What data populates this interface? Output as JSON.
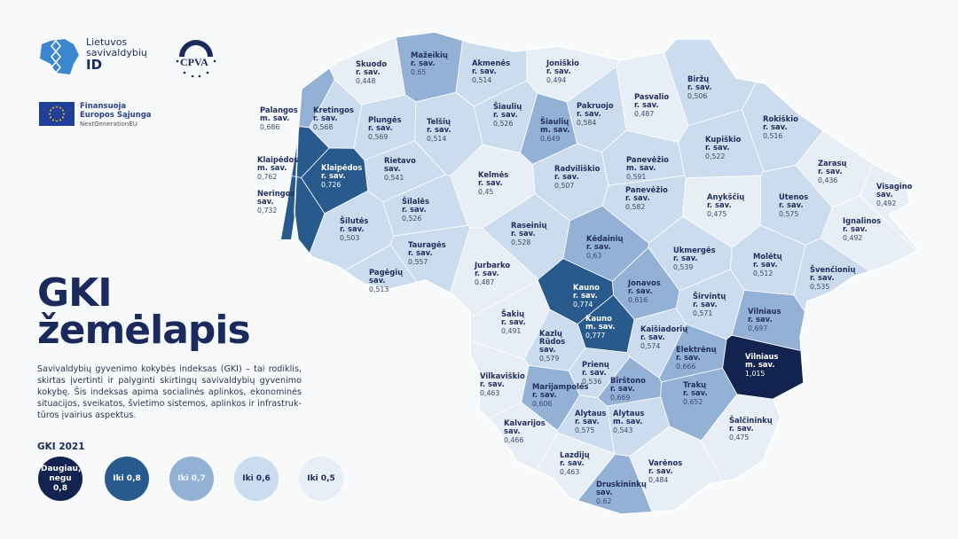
{
  "logos": {
    "lsid": {
      "line1": "Lietuvos",
      "line2": "savivaldybių",
      "line3": "ID"
    },
    "cpva": "CPVA",
    "eu": {
      "line1": "Finansuoja",
      "line2": "Europos Sąjunga",
      "line3": "NextGenerationEU"
    }
  },
  "title": {
    "line1": "GKI",
    "line2": "žemėlapis"
  },
  "description": "Savivaldybių gyvenimo kokybės indeksas (GKI) – tai rodiklis, skirtas įvertinti ir palyginti skirtingų savivaldybių gyvenimo kokybę. Šis indeksas apima socialinės aplinkos, ekonominės situacijos, sveikatos, švietimo sistemos, aplinkos ir infrastruk-tūros įvairius aspektus.",
  "legend": {
    "title": "GKI 2021",
    "items": [
      {
        "label": "Daugiau, negu 0,8",
        "color": "#13234f"
      },
      {
        "label": "Iki 0,8",
        "color": "#285a8e"
      },
      {
        "label": "Iki 0,7",
        "color": "#93b1d5"
      },
      {
        "label": "Iki 0,6",
        "color": "#cbdcee"
      },
      {
        "label": "Iki 0,5",
        "color": "#e8eef5"
      }
    ]
  },
  "municipalities": [
    {
      "name": "Skuodo",
      "type": "r. sav.",
      "value": "0,448"
    },
    {
      "name": "Mažeikių",
      "type": "r. sav.",
      "value": "0,65"
    },
    {
      "name": "Akmenės",
      "type": "r. sav.",
      "value": "0,514"
    },
    {
      "name": "Joniškio",
      "type": "r. sav.",
      "value": "0,494"
    },
    {
      "name": "Biržų",
      "type": "r. sav.",
      "value": "0,506"
    },
    {
      "name": "Pasvalio",
      "type": "r. sav.",
      "value": "0,487"
    },
    {
      "name": "Pakruojo",
      "type": "r. sav.",
      "value": "0,584"
    },
    {
      "name": "Šiaulių",
      "type": "r. sav.",
      "value": "0,526"
    },
    {
      "name": "Šiaulių",
      "type": "m. sav.",
      "value": "0,649"
    },
    {
      "name": "Kretingos",
      "type": "r. sav.",
      "value": "0,568"
    },
    {
      "name": "Plungės",
      "type": "r. sav.",
      "value": "0,569"
    },
    {
      "name": "Telšių",
      "type": "r. sav.",
      "value": "0,514"
    },
    {
      "name": "Rokiškio",
      "type": "r. sav.",
      "value": "0,516"
    },
    {
      "name": "Kupiškio",
      "type": "r. sav.",
      "value": "0,522"
    },
    {
      "name": "Klaipėdos",
      "type": "r. sav.",
      "value": "0,726"
    },
    {
      "name": "Rietavo",
      "type": "sav.",
      "value": "0,541"
    },
    {
      "name": "Kelmės",
      "type": "r. sav.",
      "value": "0,45"
    },
    {
      "name": "Radviliškio",
      "type": "r. sav.",
      "value": "0,507"
    },
    {
      "name": "Panevėžio",
      "type": "m. sav.",
      "value": "0,591"
    },
    {
      "name": "Panevėžio",
      "type": "r. sav.",
      "value": "0,582"
    },
    {
      "name": "Zarasų",
      "type": "r. sav.",
      "value": "0,436"
    },
    {
      "name": "Visagino",
      "type": "sav.",
      "value": "0,492"
    },
    {
      "name": "Anykščių",
      "type": "r. sav.",
      "value": "0,475"
    },
    {
      "name": "Utenos",
      "type": "r. sav.",
      "value": "0,575"
    },
    {
      "name": "Ignalinos",
      "type": "r. sav.",
      "value": "0,492"
    },
    {
      "name": "Šilalės",
      "type": "r. sav.",
      "value": "0,526"
    },
    {
      "name": "Šilutės",
      "type": "r. sav.",
      "value": "0,503"
    },
    {
      "name": "Raseinių",
      "type": "r. sav.",
      "value": "0,528"
    },
    {
      "name": "Kėdainių",
      "type": "r. sav.",
      "value": "0,63"
    },
    {
      "name": "Tauragės",
      "type": "r. sav.",
      "value": "0,557"
    },
    {
      "name": "Ukmergės",
      "type": "r. sav.",
      "value": "0,539"
    },
    {
      "name": "Molėtų",
      "type": "r. sav.",
      "value": "0,512"
    },
    {
      "name": "Švenčionių",
      "type": "r. sav.",
      "value": "0,535"
    },
    {
      "name": "Pagėgių",
      "type": "sav.",
      "value": "0,513"
    },
    {
      "name": "Jurbarko",
      "type": "r. sav.",
      "value": "0,487"
    },
    {
      "name": "Kauno",
      "type": "r. sav.",
      "value": "0,774"
    },
    {
      "name": "Jonavos",
      "type": "r. sav.",
      "value": "0,616"
    },
    {
      "name": "Kauno",
      "type": "m. sav.",
      "value": "0,777"
    },
    {
      "name": "Širvintų",
      "type": "r. sav.",
      "value": "0,571"
    },
    {
      "name": "Vilniaus",
      "type": "r. sav.",
      "value": "0,697"
    },
    {
      "name": "Šakių",
      "type": "r. sav.",
      "value": "0,491"
    },
    {
      "name": "Kaišiadorių",
      "type": "r. sav.",
      "value": "0,574"
    },
    {
      "name": "Kazlų Rūdos",
      "type": "sav.",
      "value": "0,579"
    },
    {
      "name": "Elektrėnų",
      "type": "r. sav.",
      "value": "0,666"
    },
    {
      "name": "Vilniaus",
      "type": "m. sav.",
      "value": "1,015"
    },
    {
      "name": "Vilkaviškio",
      "type": "r. sav.",
      "value": "0,463"
    },
    {
      "name": "Prienų",
      "type": "r. sav.",
      "value": "0,536"
    },
    {
      "name": "Marijampolės",
      "type": "r. sav.",
      "value": "0,606"
    },
    {
      "name": "Birštono",
      "type": "r. sav.",
      "value": "0,669"
    },
    {
      "name": "Trakų",
      "type": "r. sav.",
      "value": "0,652"
    },
    {
      "name": "Alytaus",
      "type": "r. sav.",
      "value": "0,575"
    },
    {
      "name": "Alytaus",
      "type": "m. sav.",
      "value": "0,543"
    },
    {
      "name": "Kalvarijos",
      "type": "sav.",
      "value": "0,466"
    },
    {
      "name": "Šalčininkų",
      "type": "r. sav.",
      "value": "0,475"
    },
    {
      "name": "Lazdijų",
      "type": "r. sav.",
      "value": "0,463"
    },
    {
      "name": "Varėnos",
      "type": "r. sav.",
      "value": "0,484"
    },
    {
      "name": "Druskininkų",
      "type": "sav.",
      "value": "0,62"
    },
    {
      "name": "Palangos",
      "type": "m. sav.",
      "value": "0,686"
    },
    {
      "name": "Klaipėdos",
      "type": "m. sav.",
      "value": "0,762"
    },
    {
      "name": "Neringos",
      "type": "sav.",
      "value": "0,732"
    }
  ]
}
